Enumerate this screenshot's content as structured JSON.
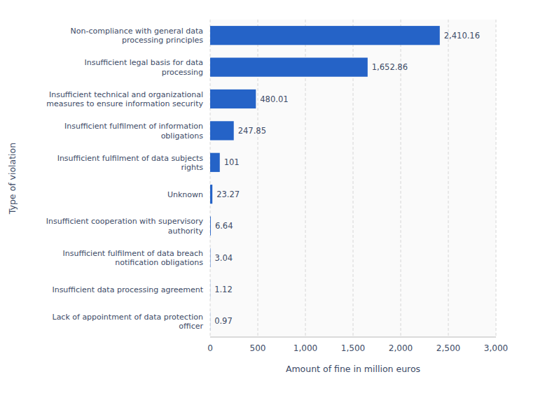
{
  "chart_data": {
    "type": "bar",
    "orientation": "horizontal",
    "categories": [
      "Lack of appointment of data protection\nofficer",
      "Insufficient data processing agreement",
      "Insufficient fulfilment of data breach\nnotification obligations",
      "Insufficient cooperation with supervisory\nauthority",
      "Unknown",
      "Insufficient fulfilment of data subjects\nrights",
      "Insufficient fulfilment of information\nobligations",
      "Insufficient technical and organizational\nmeasures to ensure information security",
      "Insufficient legal basis for data\nprocessing",
      "Non-compliance with general data\nprocessing principles"
    ],
    "values": [
      0.97,
      1.12,
      3.04,
      6.64,
      23.27,
      101,
      247.85,
      480.01,
      1652.86,
      2410.16
    ],
    "value_labels": [
      "0.97",
      "1.12",
      "3.04",
      "6.64",
      "23.27",
      "101",
      "247.85",
      "480.01",
      "1,652.86",
      "2,410.16"
    ],
    "data_labels": true,
    "color": "#2563c7",
    "xlabel": "Amount of fine in million euros",
    "ylabel": "Type of violation",
    "xlim": [
      0,
      3000
    ],
    "xticks": [
      0,
      500,
      {
        "value": 1000,
        "label": "1,000"
      },
      {
        "value": 1500,
        "label": "1,500"
      },
      {
        "value": 2000,
        "label": "2,000"
      },
      {
        "value": 2500,
        "label": "2,500"
      },
      {
        "value": 3000,
        "label": "3,000"
      }
    ],
    "grid": true
  }
}
